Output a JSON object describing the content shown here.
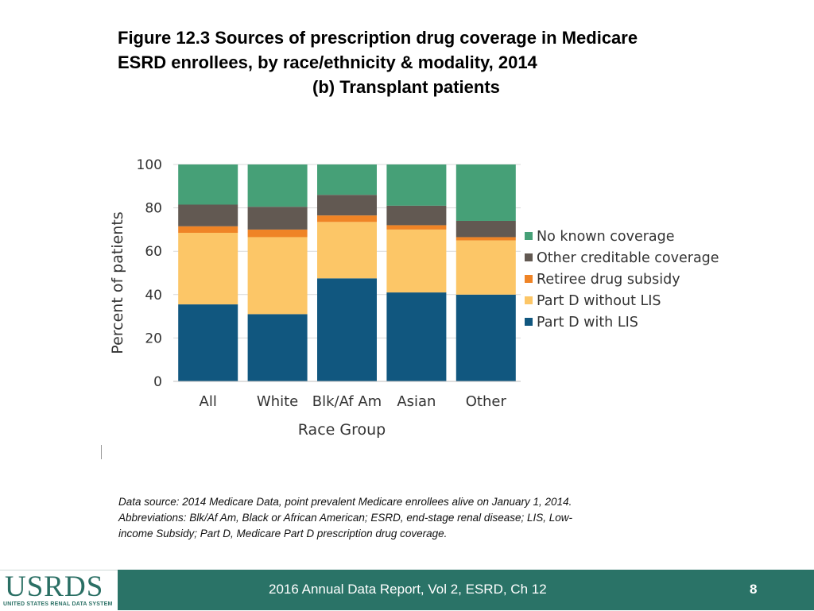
{
  "title": {
    "line1": "Figure 12.3  Sources of prescription drug coverage in Medicare",
    "line2": "ESRD enrollees, by race/ethnicity & modality, 2014",
    "subtitle": "(b) Transplant patients"
  },
  "chart_data": {
    "type": "bar",
    "stacked": true,
    "xlabel": "Race Group",
    "ylabel": "Percent of patients",
    "ylim": [
      0,
      100
    ],
    "yticks": [
      0,
      20,
      40,
      60,
      80,
      100
    ],
    "categories": [
      "All",
      "White",
      "Blk/Af Am",
      "Asian",
      "Other"
    ],
    "legend_position": "right",
    "series": [
      {
        "name": "Part D with LIS",
        "color": "#11577f",
        "values": [
          35.5,
          31,
          47.5,
          41,
          40
        ]
      },
      {
        "name": "Part D without LIS",
        "color": "#fcc667",
        "values": [
          33,
          35.5,
          26,
          29,
          25
        ]
      },
      {
        "name": "Retiree drug subsidy",
        "color": "#ef8426",
        "values": [
          3,
          3.5,
          3,
          2,
          1.5
        ]
      },
      {
        "name": "Other creditable coverage",
        "color": "#625952",
        "values": [
          10,
          10.5,
          9.5,
          9,
          7.5
        ]
      },
      {
        "name": "No known coverage",
        "color": "#46a077",
        "values": [
          18.5,
          19.5,
          14,
          19,
          26
        ]
      }
    ]
  },
  "source_note": "Data source: 2014 Medicare Data, point prevalent Medicare enrollees alive on January 1, 2014. Abbreviations: Blk/Af Am, Black or African American; ESRD, end-stage renal disease; LIS, Low-income Subsidy; Part D, Medicare Part D prescription drug coverage.",
  "footer": {
    "logo_text": "USRDS",
    "logo_subtext": "UNITED STATES RENAL DATA SYSTEM",
    "report": "2016 Annual Data Report, Vol 2, ESRD, Ch 12",
    "page": "8"
  }
}
